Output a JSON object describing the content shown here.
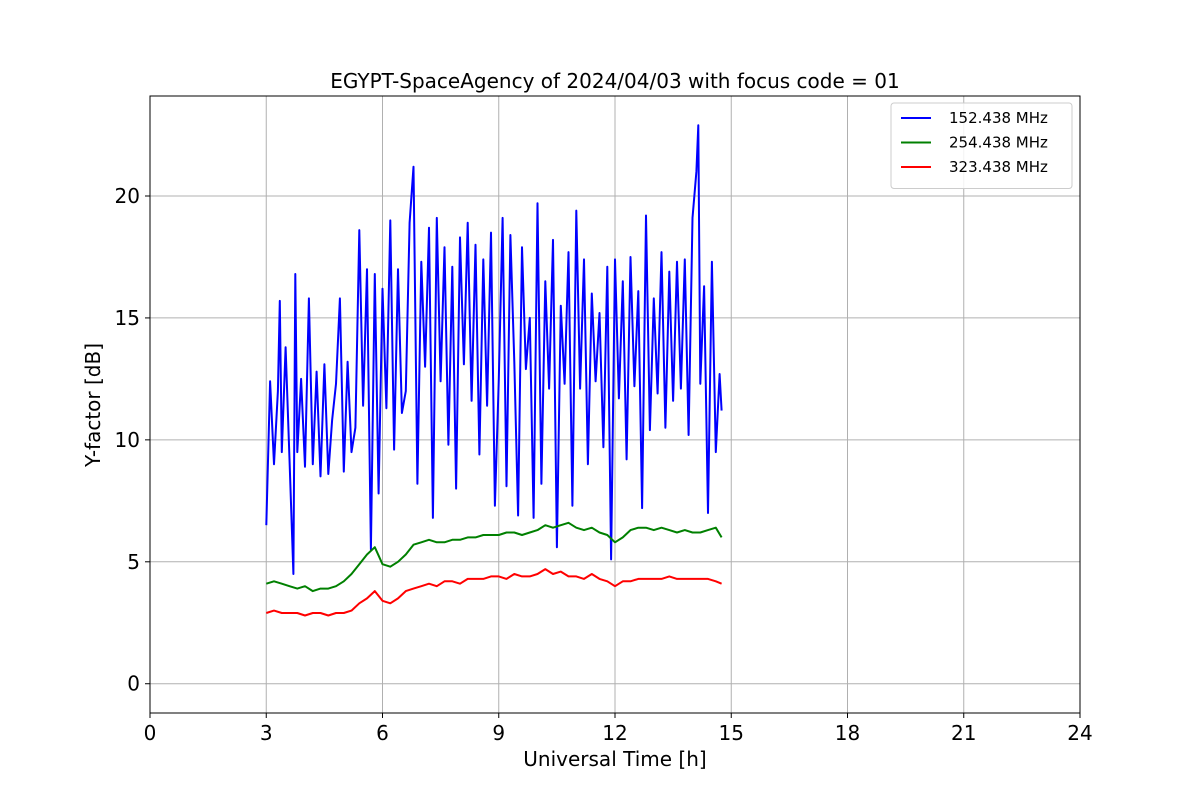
{
  "chart_data": {
    "type": "line",
    "title": "EGYPT-SpaceAgency of 2024/04/03 with focus code = 01",
    "xlabel": "Universal Time [h]",
    "ylabel": "Y-factor [dB]",
    "xlim": [
      0,
      24
    ],
    "ylim": [
      -1.2,
      24.1
    ],
    "xticks": [
      0,
      3,
      6,
      9,
      12,
      15,
      18,
      21,
      24
    ],
    "yticks": [
      0,
      5,
      10,
      15,
      20
    ],
    "grid": true,
    "legend_position": "top-right",
    "series": [
      {
        "name": "152.438 MHz",
        "color": "#0000ff",
        "x": [
          3.0,
          3.1,
          3.2,
          3.3,
          3.35,
          3.4,
          3.5,
          3.6,
          3.7,
          3.75,
          3.8,
          3.9,
          4.0,
          4.1,
          4.2,
          4.3,
          4.4,
          4.5,
          4.6,
          4.7,
          4.8,
          4.9,
          5.0,
          5.1,
          5.2,
          5.3,
          5.4,
          5.5,
          5.6,
          5.7,
          5.8,
          5.9,
          6.0,
          6.1,
          6.2,
          6.3,
          6.4,
          6.5,
          6.6,
          6.7,
          6.8,
          6.9,
          7.0,
          7.1,
          7.2,
          7.3,
          7.4,
          7.5,
          7.6,
          7.7,
          7.8,
          7.9,
          8.0,
          8.1,
          8.2,
          8.3,
          8.4,
          8.5,
          8.6,
          8.7,
          8.8,
          8.9,
          9.0,
          9.1,
          9.2,
          9.3,
          9.4,
          9.5,
          9.6,
          9.7,
          9.8,
          9.9,
          10.0,
          10.1,
          10.2,
          10.3,
          10.4,
          10.5,
          10.6,
          10.7,
          10.8,
          10.9,
          11.0,
          11.1,
          11.2,
          11.3,
          11.4,
          11.5,
          11.6,
          11.7,
          11.8,
          11.9,
          12.0,
          12.1,
          12.2,
          12.3,
          12.4,
          12.5,
          12.6,
          12.7,
          12.8,
          12.9,
          13.0,
          13.1,
          13.2,
          13.3,
          13.4,
          13.5,
          13.6,
          13.7,
          13.8,
          13.9,
          14.0,
          14.1,
          14.15,
          14.2,
          14.3,
          14.4,
          14.5,
          14.6,
          14.7,
          14.75
        ],
        "y": [
          6.5,
          12.4,
          9.0,
          12.0,
          15.7,
          9.5,
          13.8,
          9.2,
          4.5,
          16.8,
          9.5,
          12.5,
          8.9,
          15.8,
          9.0,
          12.8,
          8.5,
          13.1,
          8.6,
          10.8,
          12.3,
          15.8,
          8.7,
          13.2,
          9.5,
          10.5,
          18.6,
          11.4,
          17.0,
          5.5,
          16.8,
          7.8,
          16.2,
          11.3,
          19.0,
          9.6,
          17.0,
          11.1,
          12.0,
          18.9,
          21.2,
          8.2,
          17.3,
          13.0,
          18.7,
          6.8,
          19.1,
          12.4,
          17.9,
          9.8,
          17.1,
          8.0,
          18.3,
          13.1,
          18.9,
          11.6,
          18.0,
          9.4,
          17.4,
          11.4,
          18.5,
          7.3,
          12.5,
          19.1,
          8.1,
          18.4,
          13.2,
          6.9,
          17.9,
          12.9,
          15.0,
          6.8,
          19.7,
          8.2,
          16.5,
          12.1,
          18.2,
          5.6,
          15.5,
          12.3,
          17.7,
          7.3,
          19.4,
          12.1,
          17.4,
          9.0,
          16.0,
          12.4,
          15.2,
          9.7,
          17.1,
          5.1,
          17.4,
          11.7,
          16.5,
          9.2,
          17.5,
          12.2,
          16.1,
          7.2,
          19.2,
          10.4,
          15.8,
          11.9,
          17.7,
          10.5,
          16.9,
          11.6,
          17.3,
          12.1,
          17.4,
          10.2,
          19.1,
          21.0,
          22.9,
          12.3,
          16.3,
          7.0,
          17.3,
          9.5,
          12.7,
          11.2
        ]
      },
      {
        "name": "254.438 MHz",
        "color": "#008000",
        "x": [
          3.0,
          3.2,
          3.4,
          3.6,
          3.8,
          4.0,
          4.2,
          4.4,
          4.6,
          4.8,
          5.0,
          5.2,
          5.4,
          5.6,
          5.8,
          6.0,
          6.2,
          6.4,
          6.6,
          6.8,
          7.0,
          7.2,
          7.4,
          7.6,
          7.8,
          8.0,
          8.2,
          8.4,
          8.6,
          8.8,
          9.0,
          9.2,
          9.4,
          9.6,
          9.8,
          10.0,
          10.2,
          10.4,
          10.6,
          10.8,
          11.0,
          11.2,
          11.4,
          11.6,
          11.8,
          12.0,
          12.2,
          12.4,
          12.6,
          12.8,
          13.0,
          13.2,
          13.4,
          13.6,
          13.8,
          14.0,
          14.2,
          14.4,
          14.6,
          14.75
        ],
        "y": [
          4.1,
          4.2,
          4.1,
          4.0,
          3.9,
          4.0,
          3.8,
          3.9,
          3.9,
          4.0,
          4.2,
          4.5,
          4.9,
          5.3,
          5.6,
          4.9,
          4.8,
          5.0,
          5.3,
          5.7,
          5.8,
          5.9,
          5.8,
          5.8,
          5.9,
          5.9,
          6.0,
          6.0,
          6.1,
          6.1,
          6.1,
          6.2,
          6.2,
          6.1,
          6.2,
          6.3,
          6.5,
          6.4,
          6.5,
          6.6,
          6.4,
          6.3,
          6.4,
          6.2,
          6.1,
          5.8,
          6.0,
          6.3,
          6.4,
          6.4,
          6.3,
          6.4,
          6.3,
          6.2,
          6.3,
          6.2,
          6.2,
          6.3,
          6.4,
          6.0
        ]
      },
      {
        "name": "323.438 MHz",
        "color": "#ff0000",
        "x": [
          3.0,
          3.2,
          3.4,
          3.6,
          3.8,
          4.0,
          4.2,
          4.4,
          4.6,
          4.8,
          5.0,
          5.2,
          5.4,
          5.6,
          5.8,
          6.0,
          6.2,
          6.4,
          6.6,
          6.8,
          7.0,
          7.2,
          7.4,
          7.6,
          7.8,
          8.0,
          8.2,
          8.4,
          8.6,
          8.8,
          9.0,
          9.2,
          9.4,
          9.6,
          9.8,
          10.0,
          10.2,
          10.4,
          10.6,
          10.8,
          11.0,
          11.2,
          11.4,
          11.6,
          11.8,
          12.0,
          12.2,
          12.4,
          12.6,
          12.8,
          13.0,
          13.2,
          13.4,
          13.6,
          13.8,
          14.0,
          14.2,
          14.4,
          14.6,
          14.75
        ],
        "y": [
          2.9,
          3.0,
          2.9,
          2.9,
          2.9,
          2.8,
          2.9,
          2.9,
          2.8,
          2.9,
          2.9,
          3.0,
          3.3,
          3.5,
          3.8,
          3.4,
          3.3,
          3.5,
          3.8,
          3.9,
          4.0,
          4.1,
          4.0,
          4.2,
          4.2,
          4.1,
          4.3,
          4.3,
          4.3,
          4.4,
          4.4,
          4.3,
          4.5,
          4.4,
          4.4,
          4.5,
          4.7,
          4.5,
          4.6,
          4.4,
          4.4,
          4.3,
          4.5,
          4.3,
          4.2,
          4.0,
          4.2,
          4.2,
          4.3,
          4.3,
          4.3,
          4.3,
          4.4,
          4.3,
          4.3,
          4.3,
          4.3,
          4.3,
          4.2,
          4.1
        ]
      }
    ]
  }
}
